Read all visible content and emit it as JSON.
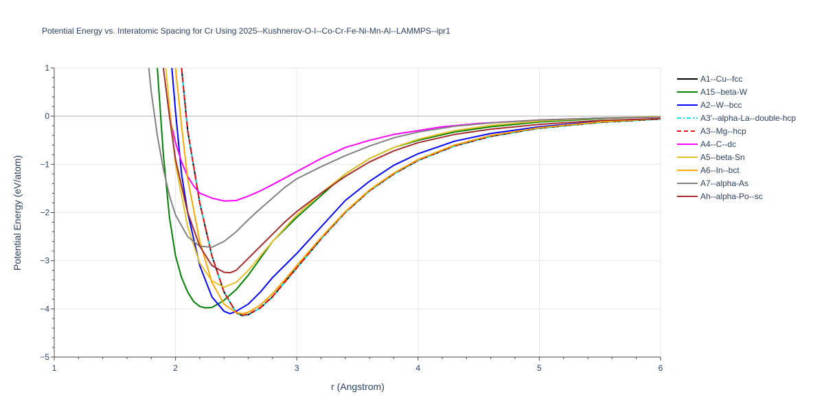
{
  "chart_data": {
    "type": "line",
    "title": "Potential Energy vs. Interatomic Spacing for Cr Using 2025--Kushnerov-O-I--Co-Cr-Fe-Ni-Mn-Al--LAMMPS--ipr1",
    "xlabel": "r (Angstrom)",
    "ylabel": "Potential Energy (eV/atom)",
    "xlim": [
      1,
      6
    ],
    "ylim": [
      -5,
      1
    ],
    "xticks": [
      1,
      2,
      3,
      4,
      5,
      6
    ],
    "yticks": [
      1,
      0,
      -1,
      -2,
      -3,
      -4,
      -5
    ],
    "ytick_labels": [
      "1",
      "0",
      "−1",
      "−2",
      "−3",
      "−4",
      "−5"
    ],
    "grid": true,
    "legend_position": "right",
    "series": [
      {
        "name": "A1--Cu--fcc",
        "color": "#000000",
        "dash": "solid",
        "x": [
          2.05,
          2.1,
          2.2,
          2.3,
          2.4,
          2.5,
          2.55,
          2.6,
          2.7,
          2.8,
          2.9,
          3.0,
          3.2,
          3.4,
          3.6,
          3.8,
          4.0,
          4.3,
          4.6,
          5.0,
          5.5,
          6.0
        ],
        "y": [
          1.0,
          -0.3,
          -1.8,
          -2.9,
          -3.65,
          -4.08,
          -4.14,
          -4.12,
          -3.98,
          -3.75,
          -3.45,
          -3.15,
          -2.55,
          -2.0,
          -1.55,
          -1.2,
          -0.92,
          -0.62,
          -0.42,
          -0.25,
          -0.13,
          -0.06
        ]
      },
      {
        "name": "A15--beta-W",
        "color": "#008000",
        "dash": "solid",
        "x": [
          1.85,
          1.9,
          1.95,
          2.0,
          2.05,
          2.1,
          2.15,
          2.2,
          2.25,
          2.3,
          2.35,
          2.4,
          2.5,
          2.6,
          2.7,
          2.8,
          3.0,
          3.2,
          3.4,
          3.6,
          3.8,
          4.0,
          4.3,
          4.6,
          5.0,
          5.5,
          6.0
        ],
        "y": [
          1.0,
          -0.8,
          -2.1,
          -2.9,
          -3.35,
          -3.65,
          -3.85,
          -3.95,
          -3.98,
          -3.97,
          -3.9,
          -3.82,
          -3.6,
          -3.3,
          -2.95,
          -2.6,
          -2.1,
          -1.65,
          -1.2,
          -0.88,
          -0.65,
          -0.5,
          -0.33,
          -0.22,
          -0.12,
          -0.05,
          -0.01
        ]
      },
      {
        "name": "A2--W--bcc",
        "color": "#0000ff",
        "dash": "solid",
        "x": [
          1.97,
          2.0,
          2.05,
          2.1,
          2.2,
          2.3,
          2.4,
          2.45,
          2.5,
          2.6,
          2.7,
          2.8,
          3.0,
          3.2,
          3.4,
          3.6,
          3.8,
          4.0,
          4.3,
          4.6,
          5.0,
          5.5,
          6.0
        ],
        "y": [
          1.0,
          0.1,
          -1.2,
          -2.0,
          -3.1,
          -3.75,
          -4.05,
          -4.1,
          -4.05,
          -3.9,
          -3.65,
          -3.35,
          -2.85,
          -2.3,
          -1.75,
          -1.35,
          -1.02,
          -0.78,
          -0.52,
          -0.36,
          -0.22,
          -0.11,
          -0.05
        ]
      },
      {
        "name": "A3'--alpha-La--double-hcp",
        "color": "#00e5ee",
        "dash": "dashdot",
        "x": [
          2.05,
          2.1,
          2.2,
          2.3,
          2.4,
          2.5,
          2.55,
          2.6,
          2.7,
          2.8,
          2.9,
          3.0,
          3.2,
          3.4,
          3.6,
          3.8,
          4.0,
          4.3,
          4.6,
          5.0,
          5.5,
          6.0
        ],
        "y": [
          1.0,
          -0.3,
          -1.8,
          -2.9,
          -3.65,
          -4.08,
          -4.14,
          -4.12,
          -3.98,
          -3.75,
          -3.45,
          -3.15,
          -2.55,
          -2.0,
          -1.55,
          -1.2,
          -0.92,
          -0.62,
          -0.42,
          -0.25,
          -0.13,
          -0.06
        ]
      },
      {
        "name": "A3--Mg--hcp",
        "color": "#ee1111",
        "dash": "dash",
        "x": [
          2.05,
          2.1,
          2.2,
          2.3,
          2.4,
          2.5,
          2.55,
          2.6,
          2.7,
          2.8,
          2.9,
          3.0,
          3.2,
          3.4,
          3.6,
          3.8,
          4.0,
          4.3,
          4.6,
          5.0,
          5.5,
          6.0
        ],
        "y": [
          1.0,
          -0.3,
          -1.8,
          -2.9,
          -3.65,
          -4.07,
          -4.13,
          -4.11,
          -3.97,
          -3.74,
          -3.44,
          -3.14,
          -2.54,
          -1.99,
          -1.54,
          -1.19,
          -0.91,
          -0.61,
          -0.41,
          -0.24,
          -0.12,
          -0.05
        ]
      },
      {
        "name": "A4--C--dc",
        "color": "#ff00ff",
        "dash": "solid",
        "x": [
          1.95,
          2.0,
          2.05,
          2.1,
          2.15,
          2.2,
          2.25,
          2.3,
          2.4,
          2.5,
          2.6,
          2.7,
          2.8,
          3.0,
          3.2,
          3.4,
          3.6,
          3.8,
          4.0,
          4.2,
          4.5,
          5.0,
          5.5,
          6.0
        ],
        "y": [
          0.0,
          -0.55,
          -0.95,
          -1.25,
          -1.45,
          -1.6,
          -1.65,
          -1.7,
          -1.76,
          -1.75,
          -1.66,
          -1.55,
          -1.42,
          -1.15,
          -0.88,
          -0.65,
          -0.5,
          -0.38,
          -0.3,
          -0.22,
          -0.15,
          -0.08,
          -0.04,
          -0.02
        ]
      },
      {
        "name": "A5--beta-Sn",
        "color": "#e6c229",
        "dash": "solid",
        "x": [
          1.92,
          1.95,
          2.0,
          2.1,
          2.2,
          2.3,
          2.4,
          2.5,
          2.6,
          2.7,
          2.8,
          3.0,
          3.2,
          3.4,
          3.6,
          3.8,
          4.0,
          4.3,
          4.6,
          5.0,
          5.5,
          6.0
        ],
        "y": [
          1.0,
          0.2,
          -1.0,
          -2.3,
          -3.05,
          -3.42,
          -3.55,
          -3.45,
          -3.2,
          -2.9,
          -2.6,
          -2.05,
          -1.6,
          -1.2,
          -0.88,
          -0.65,
          -0.48,
          -0.3,
          -0.19,
          -0.1,
          -0.04,
          -0.01
        ]
      },
      {
        "name": "A6--In--bct",
        "color": "#ffa500",
        "dash": "solid",
        "x": [
          2.0,
          2.05,
          2.1,
          2.2,
          2.3,
          2.4,
          2.5,
          2.55,
          2.6,
          2.7,
          2.8,
          2.9,
          3.0,
          3.2,
          3.4,
          3.6,
          3.8,
          4.0,
          4.3,
          4.6,
          5.0,
          5.5,
          6.0
        ],
        "y": [
          1.0,
          -0.2,
          -1.3,
          -2.6,
          -3.45,
          -3.9,
          -4.08,
          -4.1,
          -4.07,
          -3.92,
          -3.68,
          -3.4,
          -3.1,
          -2.52,
          -1.98,
          -1.53,
          -1.18,
          -0.9,
          -0.6,
          -0.4,
          -0.24,
          -0.12,
          -0.05
        ]
      },
      {
        "name": "A7--alpha-As",
        "color": "#808080",
        "dash": "solid",
        "x": [
          1.78,
          1.8,
          1.85,
          1.9,
          1.95,
          2.0,
          2.1,
          2.2,
          2.3,
          2.4,
          2.5,
          2.6,
          2.7,
          2.8,
          2.9,
          3.0,
          3.2,
          3.4,
          3.6,
          3.8,
          4.0,
          4.3,
          4.6,
          5.0,
          5.5,
          6.0
        ],
        "y": [
          1.0,
          0.5,
          -0.4,
          -1.1,
          -1.65,
          -2.05,
          -2.5,
          -2.7,
          -2.72,
          -2.6,
          -2.4,
          -2.15,
          -1.92,
          -1.7,
          -1.48,
          -1.3,
          -1.05,
          -0.82,
          -0.62,
          -0.45,
          -0.33,
          -0.21,
          -0.14,
          -0.08,
          -0.04,
          -0.02
        ]
      },
      {
        "name": "Ah--alpha-Po--sc",
        "color": "#a52a2a",
        "dash": "solid",
        "x": [
          1.9,
          1.95,
          2.0,
          2.1,
          2.2,
          2.3,
          2.4,
          2.45,
          2.5,
          2.6,
          2.7,
          2.8,
          2.9,
          3.0,
          3.2,
          3.4,
          3.6,
          3.8,
          4.0,
          4.3,
          4.6,
          5.0,
          5.5,
          6.0
        ],
        "y": [
          1.0,
          0.0,
          -0.9,
          -2.0,
          -2.7,
          -3.1,
          -3.24,
          -3.25,
          -3.2,
          -2.95,
          -2.7,
          -2.45,
          -2.2,
          -1.98,
          -1.6,
          -1.25,
          -0.95,
          -0.72,
          -0.55,
          -0.38,
          -0.27,
          -0.17,
          -0.09,
          -0.05
        ]
      }
    ]
  }
}
